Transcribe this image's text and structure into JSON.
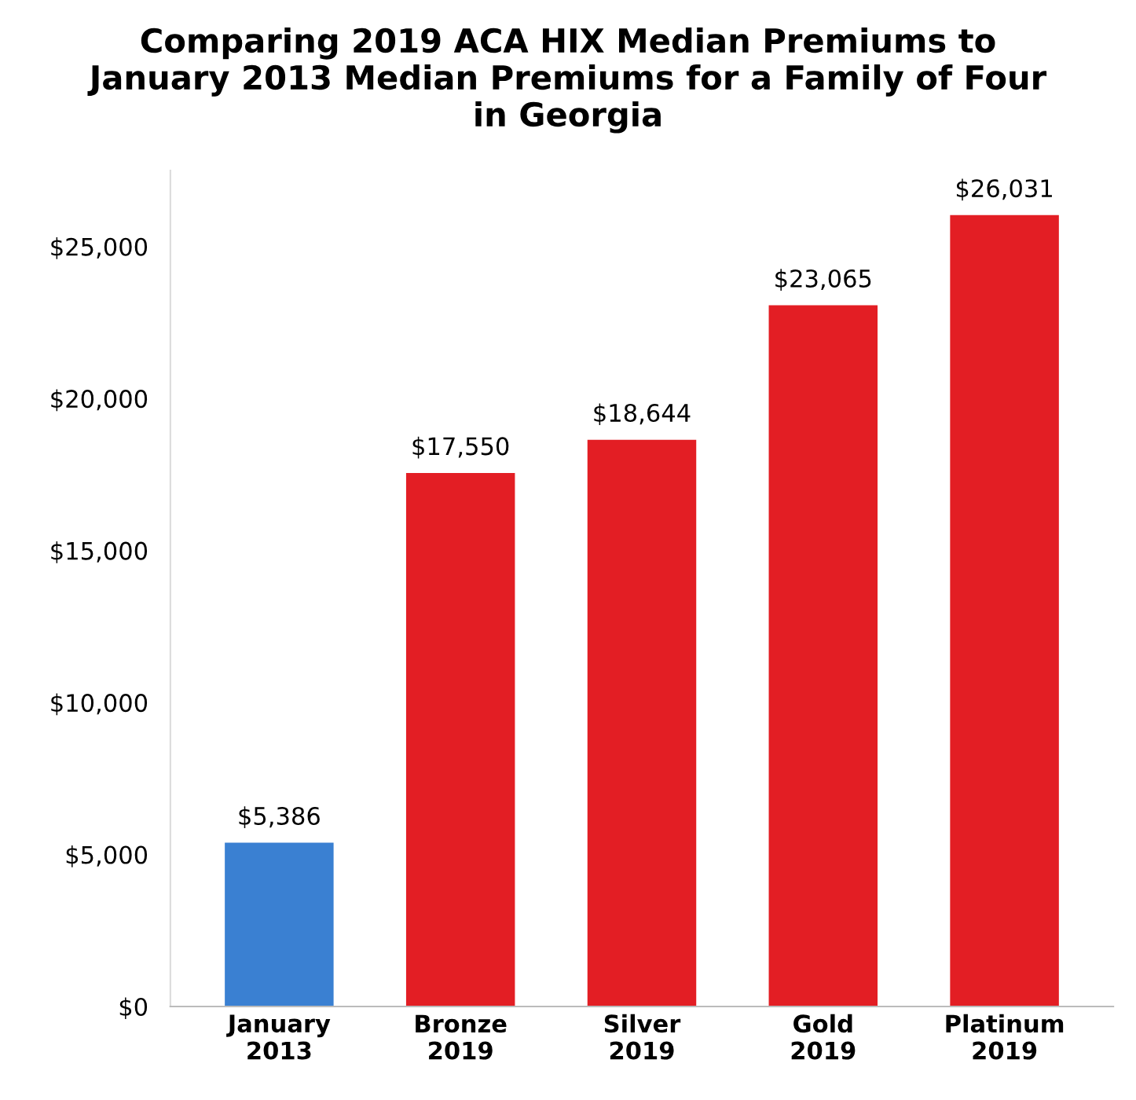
{
  "chart_data": {
    "type": "bar",
    "title": "Comparing 2019 ACA HIX Median Premiums to\nJanuary 2013 Median Premiums for a Family of Four\nin Georgia",
    "categories": [
      "January\n2013",
      "Bronze\n2019",
      "Silver\n2019",
      "Gold\n2019",
      "Platinum\n2019"
    ],
    "values": [
      5386,
      17550,
      18644,
      23065,
      26031
    ],
    "colors": [
      "#3a80d2",
      "#e31e24",
      "#e31e24",
      "#e31e24",
      "#e31e24"
    ],
    "value_labels": [
      "$5,386",
      "$17,550",
      "$18,644",
      "$23,065",
      "$26,031"
    ],
    "ylim": [
      0,
      27500
    ],
    "yticks": [
      {
        "value": 0,
        "label": "$0"
      },
      {
        "value": 5000,
        "label": "$5,000"
      },
      {
        "value": 10000,
        "label": "$10,000"
      },
      {
        "value": 15000,
        "label": "$15,000"
      },
      {
        "value": 20000,
        "label": "$20,000"
      },
      {
        "value": 25000,
        "label": "$25,000"
      }
    ],
    "grid": false,
    "legend": false
  }
}
